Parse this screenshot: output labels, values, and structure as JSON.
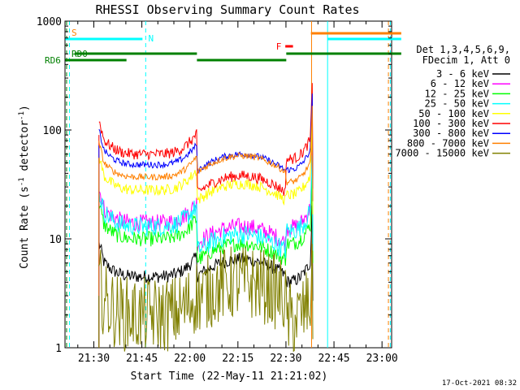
{
  "chart_data": {
    "type": "line",
    "title": "RHESSI Observing Summary Count Rates",
    "xlabel": "Start Time (22-May-11 21:21:02)",
    "ylabel_main": "Count Rate (s",
    "ylabel_sup": "-1",
    "ylabel_mid": " detector",
    "ylabel_sup2": "-1",
    "ylabel_end": ")",
    "y_scale": "log",
    "xlim_min": [
      21.35,
      23.05
    ],
    "ylim": [
      1,
      1000
    ],
    "xticks": [
      {
        "label": "21:30",
        "min": 1290
      },
      {
        "label": "21:45",
        "min": 1305
      },
      {
        "label": "22:00",
        "min": 1320
      },
      {
        "label": "22:15",
        "min": 1335
      },
      {
        "label": "22:30",
        "min": 1350
      },
      {
        "label": "22:45",
        "min": 1365
      },
      {
        "label": "23:00",
        "min": 1380
      }
    ],
    "yticks": [
      {
        "label": "1",
        "value": 1
      },
      {
        "label": "10",
        "value": 10
      },
      {
        "label": "100",
        "value": 100
      },
      {
        "label": "1000",
        "value": 1000
      }
    ],
    "legend_header": [
      "Det 1,3,4,5,6,9,",
      "FDecim 1, Att 0"
    ],
    "legend_position": "right",
    "series": [
      {
        "name": "3 - 6 keV",
        "color": "#000000",
        "plateau": 4.5,
        "night": 6.5
      },
      {
        "name": "6 - 12 keV",
        "color": "#ff00ff",
        "plateau": 14,
        "night": 13
      },
      {
        "name": "12 - 25 keV",
        "color": "#00ff00",
        "plateau": 10,
        "night": 9
      },
      {
        "name": "25 - 50 keV",
        "color": "#00ffff",
        "plateau": 13,
        "night": 11
      },
      {
        "name": "50 - 100 keV",
        "color": "#ffff00",
        "plateau": 28,
        "night": 32
      },
      {
        "name": "100 - 300 keV",
        "color": "#ff0000",
        "plateau": 60,
        "night": 38
      },
      {
        "name": "300 - 800 keV",
        "color": "#0000ff",
        "plateau": 48,
        "night": 60
      },
      {
        "name": "800 - 7000 keV",
        "color": "#ff8000",
        "plateau": 37,
        "night": 58
      },
      {
        "name": "7000 - 15000 keV",
        "color": "#808000",
        "plateau": 2,
        "night": 4
      }
    ],
    "flag_labels": {
      "s": "S",
      "n": "N",
      "f": "F",
      "rd0": "RD0",
      "rd6": "RD6"
    },
    "flag_colors": {
      "saa": "#ff8000",
      "night": "#00ffff",
      "decim": "#008000",
      "flare": "#ff0000"
    },
    "footer_date": "17-Oct-2021 08:32"
  }
}
